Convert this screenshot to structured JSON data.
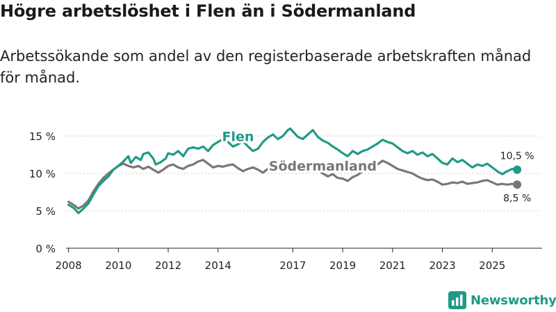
{
  "header": {
    "title": "Högre arbetslöshet i Flen än i Södermanland",
    "subtitle": "Arbetssökande som andel av den registerbaserade arbetskraften månad för månad."
  },
  "brand": {
    "name": "Newsworthy",
    "icon": "newsworthy-logo-icon"
  },
  "colors": {
    "flen": "#1f9a86",
    "sodermanland": "#777777",
    "grid": "#cccccc",
    "text": "#222222"
  },
  "chart_data": {
    "type": "line",
    "title": "Högre arbetslöshet i Flen än i Södermanland",
    "xlabel": "",
    "ylabel": "",
    "xlim": [
      2007.9,
      2027.0
    ],
    "ylim": [
      0,
      16.5
    ],
    "yticks": [
      {
        "value": 0,
        "label": "0 %"
      },
      {
        "value": 5,
        "label": "5 %"
      },
      {
        "value": 10,
        "label": "10 %"
      },
      {
        "value": 15,
        "label": "15 %"
      }
    ],
    "xticks": [
      {
        "value": 2008,
        "label": "2008"
      },
      {
        "value": 2010,
        "label": "2010"
      },
      {
        "value": 2012,
        "label": "2012"
      },
      {
        "value": 2014,
        "label": "2014"
      },
      {
        "value": 2017,
        "label": "2017"
      },
      {
        "value": 2019,
        "label": "2019"
      },
      {
        "value": 2021,
        "label": "2021"
      },
      {
        "value": 2023,
        "label": "2023"
      },
      {
        "value": 2025,
        "label": "2025"
      }
    ],
    "series": [
      {
        "name": "Flen",
        "color": "#1f9a86",
        "end_label": "10,5 %",
        "points": [
          [
            2008.0,
            5.8
          ],
          [
            2008.2,
            5.4
          ],
          [
            2008.4,
            4.7
          ],
          [
            2008.6,
            5.3
          ],
          [
            2008.8,
            6.0
          ],
          [
            2009.0,
            7.2
          ],
          [
            2009.2,
            8.3
          ],
          [
            2009.4,
            9.0
          ],
          [
            2009.6,
            9.6
          ],
          [
            2009.8,
            10.5
          ],
          [
            2010.0,
            11.0
          ],
          [
            2010.2,
            11.6
          ],
          [
            2010.4,
            12.3
          ],
          [
            2010.5,
            11.4
          ],
          [
            2010.7,
            12.2
          ],
          [
            2010.9,
            11.8
          ],
          [
            2011.0,
            12.6
          ],
          [
            2011.2,
            12.8
          ],
          [
            2011.4,
            12.0
          ],
          [
            2011.5,
            11.2
          ],
          [
            2011.7,
            11.5
          ],
          [
            2011.9,
            12.0
          ],
          [
            2012.0,
            12.7
          ],
          [
            2012.2,
            12.5
          ],
          [
            2012.4,
            13.0
          ],
          [
            2012.6,
            12.3
          ],
          [
            2012.8,
            13.3
          ],
          [
            2013.0,
            13.5
          ],
          [
            2013.2,
            13.3
          ],
          [
            2013.4,
            13.6
          ],
          [
            2013.6,
            13.0
          ],
          [
            2013.8,
            13.8
          ],
          [
            2014.0,
            14.2
          ],
          [
            2014.2,
            14.6
          ],
          [
            2014.4,
            14.2
          ],
          [
            2014.6,
            13.6
          ],
          [
            2014.8,
            13.9
          ],
          [
            2015.0,
            14.3
          ],
          [
            2015.2,
            13.6
          ],
          [
            2015.4,
            13.0
          ],
          [
            2015.6,
            13.3
          ],
          [
            2015.8,
            14.2
          ],
          [
            2016.0,
            14.8
          ],
          [
            2016.2,
            15.2
          ],
          [
            2016.4,
            14.6
          ],
          [
            2016.6,
            15.0
          ],
          [
            2016.8,
            15.8
          ],
          [
            2016.9,
            16.0
          ],
          [
            2017.0,
            15.6
          ],
          [
            2017.2,
            14.9
          ],
          [
            2017.4,
            14.6
          ],
          [
            2017.6,
            15.2
          ],
          [
            2017.8,
            15.8
          ],
          [
            2018.0,
            14.9
          ],
          [
            2018.2,
            14.4
          ],
          [
            2018.4,
            14.1
          ],
          [
            2018.6,
            13.6
          ],
          [
            2018.8,
            13.2
          ],
          [
            2019.0,
            12.7
          ],
          [
            2019.2,
            12.3
          ],
          [
            2019.4,
            13.0
          ],
          [
            2019.6,
            12.6
          ],
          [
            2019.8,
            13.0
          ],
          [
            2020.0,
            13.2
          ],
          [
            2020.2,
            13.6
          ],
          [
            2020.4,
            14.0
          ],
          [
            2020.6,
            14.5
          ],
          [
            2020.8,
            14.2
          ],
          [
            2021.0,
            14.0
          ],
          [
            2021.2,
            13.5
          ],
          [
            2021.4,
            13.0
          ],
          [
            2021.6,
            12.7
          ],
          [
            2021.8,
            13.0
          ],
          [
            2022.0,
            12.5
          ],
          [
            2022.2,
            12.8
          ],
          [
            2022.4,
            12.3
          ],
          [
            2022.6,
            12.6
          ],
          [
            2022.8,
            12.0
          ],
          [
            2023.0,
            11.4
          ],
          [
            2023.2,
            11.2
          ],
          [
            2023.4,
            12.0
          ],
          [
            2023.6,
            11.5
          ],
          [
            2023.8,
            11.8
          ],
          [
            2024.0,
            11.3
          ],
          [
            2024.2,
            10.8
          ],
          [
            2024.4,
            11.2
          ],
          [
            2024.6,
            11.0
          ],
          [
            2024.8,
            11.3
          ],
          [
            2025.0,
            10.8
          ],
          [
            2025.2,
            10.3
          ],
          [
            2025.4,
            9.9
          ],
          [
            2025.6,
            10.3
          ],
          [
            2025.8,
            10.6
          ],
          [
            2026.0,
            10.5
          ]
        ]
      },
      {
        "name": "Södermanland",
        "color": "#777777",
        "end_label": "8,5 %",
        "points": [
          [
            2008.0,
            6.2
          ],
          [
            2008.2,
            5.8
          ],
          [
            2008.4,
            5.3
          ],
          [
            2008.6,
            5.7
          ],
          [
            2008.8,
            6.4
          ],
          [
            2009.0,
            7.6
          ],
          [
            2009.2,
            8.6
          ],
          [
            2009.4,
            9.4
          ],
          [
            2009.6,
            10.0
          ],
          [
            2009.8,
            10.5
          ],
          [
            2010.0,
            11.0
          ],
          [
            2010.2,
            11.3
          ],
          [
            2010.4,
            11.0
          ],
          [
            2010.6,
            10.8
          ],
          [
            2010.8,
            11.0
          ],
          [
            2011.0,
            10.6
          ],
          [
            2011.2,
            10.9
          ],
          [
            2011.4,
            10.5
          ],
          [
            2011.6,
            10.1
          ],
          [
            2011.8,
            10.5
          ],
          [
            2012.0,
            11.0
          ],
          [
            2012.2,
            11.2
          ],
          [
            2012.4,
            10.8
          ],
          [
            2012.6,
            10.6
          ],
          [
            2012.8,
            11.0
          ],
          [
            2013.0,
            11.2
          ],
          [
            2013.2,
            11.6
          ],
          [
            2013.4,
            11.8
          ],
          [
            2013.6,
            11.3
          ],
          [
            2013.8,
            10.8
          ],
          [
            2014.0,
            11.0
          ],
          [
            2014.2,
            10.9
          ],
          [
            2014.4,
            11.1
          ],
          [
            2014.6,
            11.2
          ],
          [
            2014.8,
            10.7
          ],
          [
            2015.0,
            10.3
          ],
          [
            2015.2,
            10.6
          ],
          [
            2015.4,
            10.8
          ],
          [
            2015.6,
            10.5
          ],
          [
            2015.8,
            10.1
          ],
          [
            2016.0,
            10.6
          ],
          [
            2016.2,
            10.8
          ],
          [
            2016.4,
            11.0
          ],
          [
            2016.6,
            10.7
          ],
          [
            2016.8,
            10.5
          ],
          [
            2017.0,
            10.9
          ],
          [
            2017.2,
            11.0
          ],
          [
            2017.4,
            10.6
          ],
          [
            2017.6,
            10.3
          ],
          [
            2017.8,
            10.7
          ],
          [
            2018.0,
            10.5
          ],
          [
            2018.2,
            10.0
          ],
          [
            2018.4,
            9.6
          ],
          [
            2018.6,
            9.9
          ],
          [
            2018.8,
            9.4
          ],
          [
            2019.0,
            9.3
          ],
          [
            2019.2,
            9.0
          ],
          [
            2019.4,
            9.5
          ],
          [
            2019.6,
            9.8
          ],
          [
            2019.8,
            10.3
          ],
          [
            2020.0,
            10.8
          ],
          [
            2020.2,
            11.0
          ],
          [
            2020.4,
            11.2
          ],
          [
            2020.6,
            11.7
          ],
          [
            2020.8,
            11.4
          ],
          [
            2021.0,
            11.0
          ],
          [
            2021.2,
            10.6
          ],
          [
            2021.4,
            10.4
          ],
          [
            2021.6,
            10.2
          ],
          [
            2021.8,
            10.0
          ],
          [
            2022.0,
            9.6
          ],
          [
            2022.2,
            9.3
          ],
          [
            2022.4,
            9.1
          ],
          [
            2022.6,
            9.2
          ],
          [
            2022.8,
            8.9
          ],
          [
            2023.0,
            8.5
          ],
          [
            2023.2,
            8.6
          ],
          [
            2023.4,
            8.8
          ],
          [
            2023.6,
            8.7
          ],
          [
            2023.8,
            8.9
          ],
          [
            2024.0,
            8.6
          ],
          [
            2024.2,
            8.7
          ],
          [
            2024.4,
            8.8
          ],
          [
            2024.6,
            9.0
          ],
          [
            2024.8,
            9.1
          ],
          [
            2025.0,
            8.8
          ],
          [
            2025.2,
            8.5
          ],
          [
            2025.4,
            8.6
          ],
          [
            2025.6,
            8.5
          ],
          [
            2025.8,
            8.6
          ],
          [
            2026.0,
            8.5
          ]
        ]
      }
    ],
    "annotations": [
      {
        "series": "Flen",
        "text": "Flen",
        "x": 2014.8,
        "y": 14.3
      },
      {
        "series": "Södermanland",
        "text": "Södermanland",
        "x": 2018.2,
        "y": 10.4
      }
    ]
  }
}
